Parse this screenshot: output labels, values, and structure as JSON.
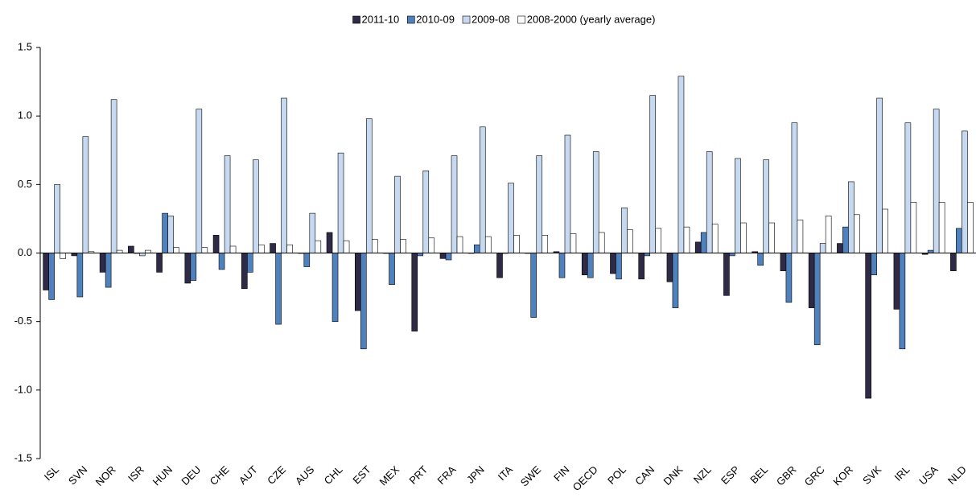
{
  "chart_data": {
    "type": "bar",
    "categories": [
      "ISL",
      "SVN",
      "NOR",
      "ISR",
      "HUN",
      "DEU",
      "CHE",
      "AUT",
      "CZE",
      "AUS",
      "CHL",
      "EST",
      "MEX",
      "PRT",
      "FRA",
      "JPN",
      "ITA",
      "SWE",
      "FIN",
      "OECD",
      "POL",
      "CAN",
      "DNK",
      "NZL",
      "ESP",
      "BEL",
      "GBR",
      "GRC",
      "KOR",
      "SVK",
      "IRL",
      "USA",
      "NLD"
    ],
    "series": [
      {
        "name": "2011-10",
        "color": "#2f2a45",
        "values": [
          -0.27,
          -0.02,
          -0.14,
          0.05,
          -0.14,
          -0.22,
          0.13,
          -0.26,
          0.07,
          0,
          0.15,
          -0.42,
          0,
          -0.57,
          -0.04,
          0,
          -0.18,
          0,
          0.01,
          -0.16,
          -0.15,
          -0.19,
          -0.21,
          0.08,
          -0.31,
          0.01,
          -0.13,
          -0.4,
          0.07,
          -1.06,
          -0.41,
          -0.01,
          -0.13
        ]
      },
      {
        "name": "2010-09",
        "color": "#4f81bd",
        "values": [
          -0.34,
          -0.32,
          -0.25,
          0,
          0.29,
          -0.2,
          -0.12,
          -0.14,
          -0.52,
          -0.1,
          -0.5,
          -0.7,
          -0.23,
          -0.02,
          -0.05,
          0.06,
          0,
          -0.47,
          -0.18,
          -0.18,
          -0.19,
          -0.02,
          -0.4,
          0.15,
          -0.02,
          -0.09,
          -0.36,
          -0.67,
          0.19,
          -0.16,
          -0.7,
          0.02,
          0.18
        ]
      },
      {
        "name": "2009-08",
        "color": "#c6d9f0",
        "values": [
          0.5,
          0.85,
          1.12,
          -0.02,
          0.27,
          1.05,
          0.71,
          0.68,
          1.13,
          0.29,
          0.73,
          0.98,
          0.56,
          0.6,
          0.71,
          0.92,
          0.51,
          0.71,
          0.86,
          0.74,
          0.33,
          1.15,
          1.29,
          0.74,
          0.69,
          0.68,
          0.95,
          0.07,
          0.52,
          1.13,
          0.95,
          1.05,
          0.89
        ]
      },
      {
        "name": "2008-2000 (yearly average)",
        "color": "#ffffff",
        "values": [
          -0.04,
          0.01,
          0.02,
          0.02,
          0.04,
          0.04,
          0.05,
          0.06,
          0.06,
          0.09,
          0.09,
          0.1,
          0.1,
          0.11,
          0.12,
          0.12,
          0.13,
          0.13,
          0.14,
          0.15,
          0.17,
          0.18,
          0.19,
          0.21,
          0.22,
          0.22,
          0.24,
          0.27,
          0.28,
          0.32,
          0.37,
          0.37,
          0.37
        ]
      }
    ],
    "ylim": [
      -1.5,
      1.5
    ],
    "yticks": [
      {
        "value": -1.5,
        "label": "-1.5"
      },
      {
        "value": -1,
        "label": "-1.0"
      },
      {
        "value": -0.5,
        "label": "-0.5"
      },
      {
        "value": 0,
        "label": "0.0"
      },
      {
        "value": 0.5,
        "label": "0.5"
      },
      {
        "value": 1,
        "label": "1.0"
      },
      {
        "value": 1.5,
        "label": "1.5"
      }
    ],
    "grid": false,
    "legend": "top"
  }
}
